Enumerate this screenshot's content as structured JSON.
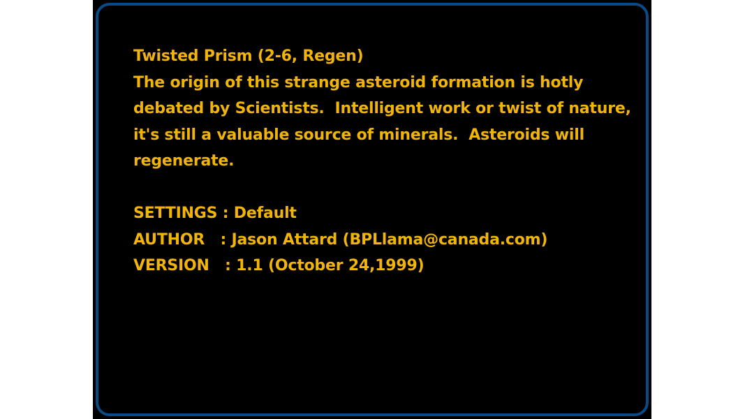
{
  "map": {
    "title": "Twisted Prism (2-6, Regen)",
    "description_lines": [
      "The origin of this strange asteroid formation is hotly",
      "debated by Scientists.  Intelligent work or twist of nature,",
      "it's still a valuable source of minerals.  Asteroids will",
      "regenerate."
    ],
    "settings_line": "SETTINGS : Default",
    "author_line": "AUTHOR   : Jason Attard (BPLlama@canada.com)",
    "version_line": "VERSION   : 1.1 (October 24,1999)"
  },
  "colors": {
    "text": "#f0b40a",
    "frame_border": "#0a4a86",
    "panel_background": "#000000"
  }
}
